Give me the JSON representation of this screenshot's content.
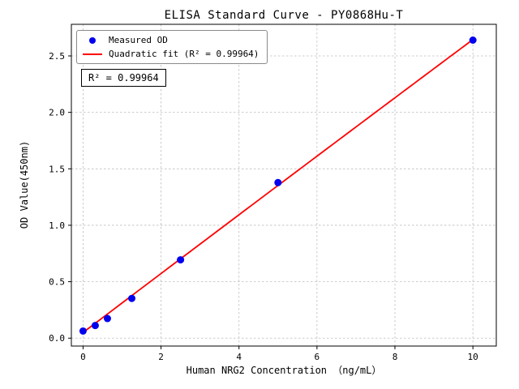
{
  "chart_data": {
    "type": "scatter",
    "title": "ELISA Standard Curve - PY0868Hu-T",
    "xlabel": "Human NRG2 Concentration （ng/mL）",
    "ylabel": "OD Value(450nm)",
    "xlim": [
      -0.3,
      10.6
    ],
    "ylim": [
      -0.07,
      2.78
    ],
    "xtick_values": [
      0,
      2,
      4,
      6,
      8,
      10
    ],
    "xtick_labels": [
      "0",
      "2",
      "4",
      "6",
      "8",
      "10"
    ],
    "ytick_values": [
      0.0,
      0.5,
      1.0,
      1.5,
      2.0,
      2.5
    ],
    "ytick_labels": [
      "0.0",
      "0.5",
      "1.0",
      "1.5",
      "2.0",
      "2.5"
    ],
    "grid": true,
    "legend_position": "upper-left",
    "annotation": "R² = 0.99964",
    "r_squared": 0.99964,
    "series": [
      {
        "name": "Measured OD",
        "type": "scatter",
        "color": "#0000ee",
        "x": [
          0,
          0.3125,
          0.625,
          1.25,
          2.5,
          5,
          10
        ],
        "y": [
          0.063,
          0.112,
          0.174,
          0.352,
          0.694,
          1.378,
          2.64
        ]
      },
      {
        "name": "Quadratic fit (R² = 0.99964)",
        "type": "line",
        "color": "#ff0000",
        "fit_coeffs": {
          "c0": 0.05,
          "c1": 0.2615,
          "c2": -0.0002
        },
        "x_range": [
          0,
          10
        ]
      }
    ]
  }
}
